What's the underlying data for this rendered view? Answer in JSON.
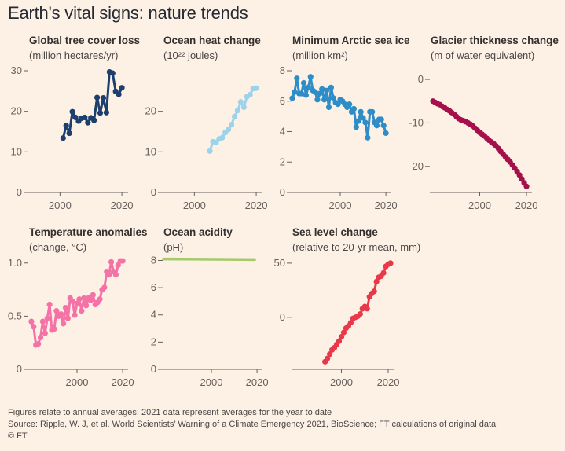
{
  "title": "Earth's vital signs: nature trends",
  "footer": {
    "note": "Figures relate to annual averages; 2021 data represent averages for the year to date",
    "source": "Source: Ripple, W. J, et al. World Scientists’ Warning of a Climate Emergency 2021, BioScience; FT calculations of original data",
    "copyright": "© FT"
  },
  "chart_data": [
    {
      "type": "line",
      "title": "Global tree cover loss",
      "subtitle": "(million hectares/yr)",
      "color": "#1d3f6e",
      "xlim": [
        1990,
        2021
      ],
      "ylim": [
        0,
        30
      ],
      "xticks": [
        2000,
        2020
      ],
      "yticks": [
        0,
        10,
        20,
        30
      ],
      "markers": true,
      "grid": false,
      "x": [
        2001,
        2002,
        2003,
        2004,
        2005,
        2006,
        2007,
        2008,
        2009,
        2010,
        2011,
        2012,
        2013,
        2014,
        2015,
        2016,
        2017,
        2018,
        2019,
        2020
      ],
      "y": [
        13.4,
        16.5,
        14.6,
        19.9,
        18.5,
        17.6,
        18.3,
        18.5,
        17.2,
        18.4,
        17.8,
        23.4,
        19.6,
        23.3,
        19.7,
        29.7,
        29.4,
        24.9,
        24.2,
        25.8
      ]
    },
    {
      "type": "line",
      "title": "Ocean heat change",
      "subtitle": "(10²² joules)",
      "color": "#9dd3ea",
      "xlim": [
        1990,
        2021
      ],
      "ylim": [
        0,
        30
      ],
      "xticks": [
        2000,
        2020
      ],
      "yticks": [
        0,
        10,
        20
      ],
      "markers": true,
      "grid": false,
      "x": [
        2005,
        2006,
        2007,
        2008,
        2009,
        2010,
        2011,
        2012,
        2013,
        2014,
        2015,
        2016,
        2017,
        2018,
        2019,
        2020
      ],
      "y": [
        10.2,
        12.5,
        12.3,
        13.2,
        13.5,
        14.8,
        15.5,
        16.7,
        18.7,
        20.2,
        22.3,
        21.0,
        23.6,
        24.1,
        25.6,
        25.7
      ]
    },
    {
      "type": "line",
      "title": "Minimum Arctic sea ice",
      "subtitle": "(million km²)",
      "color": "#2e8cc6",
      "xlim": [
        1979,
        2021
      ],
      "ylim": [
        0,
        8
      ],
      "xticks": [
        2000,
        2020
      ],
      "yticks": [
        0,
        2,
        4,
        6,
        8
      ],
      "markers": true,
      "grid": false,
      "x": [
        1979,
        1980,
        1981,
        1982,
        1983,
        1984,
        1985,
        1986,
        1987,
        1988,
        1989,
        1990,
        1991,
        1992,
        1993,
        1994,
        1995,
        1996,
        1997,
        1998,
        1999,
        2000,
        2001,
        2002,
        2003,
        2004,
        2005,
        2006,
        2007,
        2008,
        2009,
        2010,
        2011,
        2012,
        2013,
        2014,
        2015,
        2016,
        2017,
        2018,
        2019,
        2020
      ],
      "y": [
        6.2,
        6.6,
        7.5,
        6.5,
        6.5,
        7.2,
        6.4,
        6.9,
        7.6,
        6.7,
        6.6,
        6.1,
        6.5,
        6.8,
        6.1,
        6.7,
        5.6,
        6.9,
        6.2,
        5.9,
        5.8,
        6.1,
        6.0,
        5.8,
        5.6,
        5.8,
        5.3,
        5.5,
        4.3,
        4.7,
        5.3,
        4.9,
        4.6,
        3.6,
        5.3,
        5.3,
        4.6,
        4.4,
        4.8,
        4.8,
        4.4,
        3.9
      ]
    },
    {
      "type": "line",
      "title": "Glacier thickness change",
      "subtitle": "(m of water equivalent)",
      "color": "#a5104b",
      "xlim": [
        1979,
        2021
      ],
      "ylim": [
        -26,
        2
      ],
      "xticks": [
        2000,
        2020
      ],
      "yticks": [
        0,
        -10,
        -20
      ],
      "markers": true,
      "grid": false,
      "x": [
        1980,
        1981,
        1982,
        1983,
        1984,
        1985,
        1986,
        1987,
        1988,
        1989,
        1990,
        1991,
        1992,
        1993,
        1994,
        1995,
        1996,
        1997,
        1998,
        1999,
        2000,
        2001,
        2002,
        2003,
        2004,
        2005,
        2006,
        2007,
        2008,
        2009,
        2010,
        2011,
        2012,
        2013,
        2014,
        2015,
        2016,
        2017,
        2018,
        2019,
        2020
      ],
      "y": [
        -5.0,
        -5.3,
        -5.6,
        -5.8,
        -6.2,
        -6.5,
        -6.9,
        -7.2,
        -7.6,
        -8.0,
        -8.5,
        -9.0,
        -9.3,
        -9.5,
        -9.7,
        -10.0,
        -10.3,
        -10.7,
        -11.2,
        -11.7,
        -12.2,
        -12.6,
        -13.0,
        -13.5,
        -14.0,
        -14.4,
        -14.8,
        -15.3,
        -15.9,
        -16.6,
        -17.2,
        -17.8,
        -18.4,
        -19.0,
        -19.7,
        -20.4,
        -21.2,
        -22.0,
        -22.9,
        -23.8,
        -24.6
      ]
    },
    {
      "type": "line",
      "title": "Temperature anomalies",
      "subtitle": "(change, °C)",
      "color": "#f472a6",
      "xlim": [
        1979,
        2021
      ],
      "ylim": [
        0,
        1.05
      ],
      "xticks": [
        2000,
        2020
      ],
      "yticks": [
        0,
        0.5,
        1.0
      ],
      "ytick_labels": [
        "0",
        "0.5",
        "1.0"
      ],
      "markers": true,
      "grid": false,
      "x": [
        1980,
        1981,
        1982,
        1983,
        1984,
        1985,
        1986,
        1987,
        1988,
        1989,
        1990,
        1991,
        1992,
        1993,
        1994,
        1995,
        1996,
        1997,
        1998,
        1999,
        2000,
        2001,
        2002,
        2003,
        2004,
        2005,
        2006,
        2007,
        2008,
        2009,
        2010,
        2011,
        2012,
        2013,
        2014,
        2015,
        2016,
        2017,
        2018,
        2019,
        2020
      ],
      "y": [
        0.45,
        0.4,
        0.23,
        0.24,
        0.3,
        0.45,
        0.34,
        0.48,
        0.61,
        0.37,
        0.38,
        0.55,
        0.5,
        0.52,
        0.43,
        0.58,
        0.48,
        0.67,
        0.64,
        0.51,
        0.62,
        0.66,
        0.55,
        0.67,
        0.6,
        0.67,
        0.65,
        0.7,
        0.61,
        0.63,
        0.66,
        0.75,
        0.77,
        0.92,
        0.89,
        1.01,
        0.92,
        0.89,
        0.98,
        1.02,
        1.02
      ]
    },
    {
      "type": "line",
      "title": "Ocean acidity",
      "subtitle": "(pH)",
      "color": "#a6c96a",
      "xlim": [
        1979,
        2021
      ],
      "ylim": [
        0,
        8.2
      ],
      "xticks": [
        2000,
        2020
      ],
      "yticks": [
        0,
        2,
        4,
        6,
        8
      ],
      "markers": false,
      "grid": false,
      "x": [
        1979,
        2019
      ],
      "y": [
        8.11,
        8.06
      ]
    },
    {
      "type": "line",
      "title": "Sea level change",
      "subtitle": "(relative to 20-yr mean, mm)",
      "color": "#e8394b",
      "xlim": [
        1979,
        2021
      ],
      "ylim": [
        -48,
        55
      ],
      "xticks": [
        2000,
        2020
      ],
      "yticks": [
        0,
        50
      ],
      "markers": true,
      "grid": false,
      "x": [
        1993,
        1994,
        1995,
        1996,
        1997,
        1998,
        1999,
        2000,
        2001,
        2002,
        2003,
        2004,
        2005,
        2006,
        2007,
        2008,
        2009,
        2010,
        2011,
        2012,
        2013,
        2014,
        2015,
        2016,
        2017,
        2018,
        2019,
        2020,
        2021
      ],
      "y": [
        -41,
        -38,
        -34,
        -30,
        -28,
        -25,
        -22,
        -18,
        -14,
        -10,
        -8,
        -5,
        -1,
        0,
        1,
        3,
        8,
        10,
        8,
        19,
        22,
        24,
        33,
        37,
        38,
        41,
        47,
        49,
        50
      ]
    }
  ]
}
